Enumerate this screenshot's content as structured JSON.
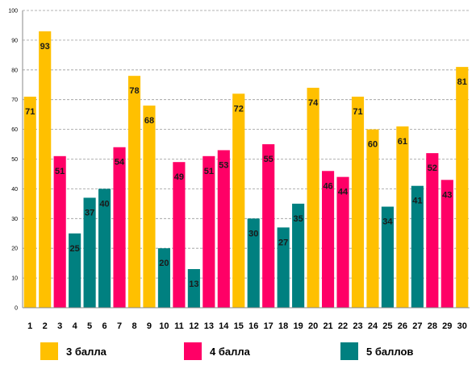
{
  "chart_data": {
    "type": "bar",
    "title": "",
    "xlabel": "",
    "ylabel": "",
    "ylim": [
      0,
      100
    ],
    "yticks": [
      0,
      10,
      20,
      30,
      40,
      50,
      60,
      70,
      80,
      90,
      100
    ],
    "grid": true,
    "legend_position": "bottom",
    "categories": [
      "1",
      "2",
      "3",
      "4",
      "5",
      "6",
      "7",
      "8",
      "9",
      "10",
      "11",
      "12",
      "13",
      "14",
      "15",
      "16",
      "17",
      "18",
      "19",
      "20",
      "21",
      "22",
      "23",
      "24",
      "25",
      "26",
      "27",
      "28",
      "29",
      "30"
    ],
    "values": [
      71,
      93,
      51,
      25,
      37,
      40,
      54,
      78,
      68,
      20,
      49,
      13,
      51,
      53,
      72,
      30,
      55,
      27,
      35,
      74,
      46,
      44,
      71,
      60,
      34,
      61,
      41,
      52,
      43,
      81
    ],
    "groups": [
      "3 балла",
      "3 балла",
      "4 балла",
      "5 баллов",
      "5 баллов",
      "5 баллов",
      "4 балла",
      "3 балла",
      "3 балла",
      "5 баллов",
      "4 балла",
      "5 баллов",
      "4 балла",
      "4 балла",
      "3 балла",
      "5 баллов",
      "4 балла",
      "5 баллов",
      "5 баллов",
      "3 балла",
      "4 балла",
      "4 балла",
      "3 балла",
      "3 балла",
      "5 баллов",
      "3 балла",
      "5 баллов",
      "4 балла",
      "4 балла",
      "3 балла"
    ],
    "legend": [
      {
        "name": "3 балла",
        "color": "#FFC000"
      },
      {
        "name": "4 балла",
        "color": "#FF0066"
      },
      {
        "name": "5 баллов",
        "color": "#008080"
      }
    ]
  }
}
